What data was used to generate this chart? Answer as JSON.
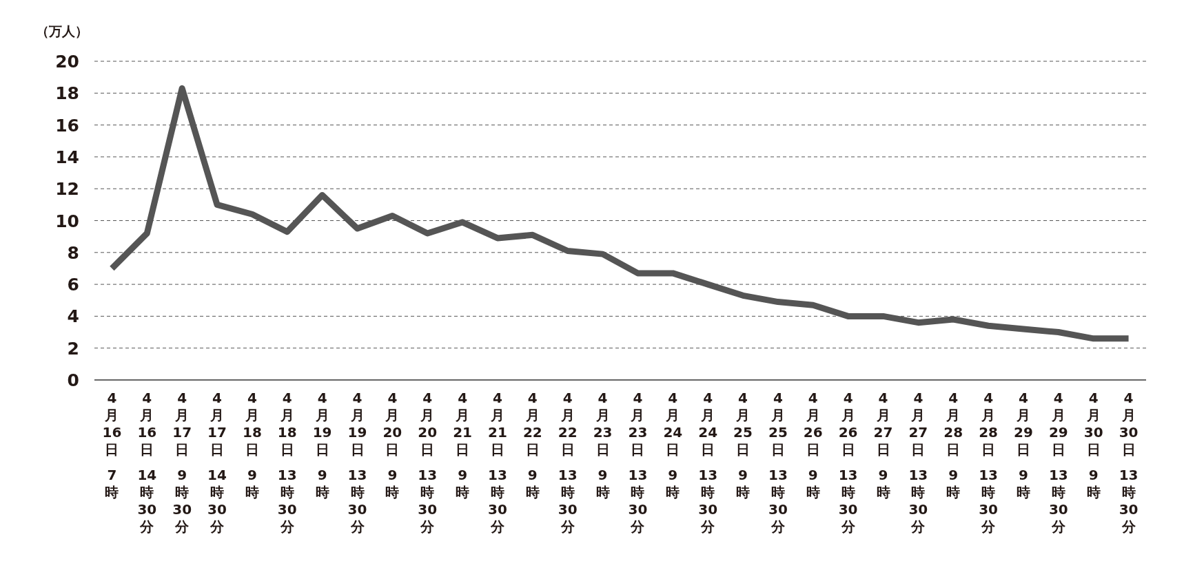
{
  "chart_data": {
    "type": "line",
    "ylabel": "（万人）",
    "categories": [
      "4月16日 7時",
      "4月16日 14時30分",
      "4月17日 9時30分",
      "4月17日 14時30分",
      "4月18日 9時",
      "4月18日 13時30分",
      "4月19日 9時",
      "4月19日 13時30分",
      "4月20日 9時",
      "4月20日 13時30分",
      "4月21日 9時",
      "4月21日 13時30分",
      "4月22日 9時",
      "4月22日 13時30分",
      "4月23日 9時",
      "4月23日 13時30分",
      "4月24日 9時",
      "4月24日 13時30分",
      "4月25日 9時",
      "4月25日 13時30分",
      "4月26日 9時",
      "4月26日 13時30分",
      "4月27日 9時",
      "4月27日 13時30分",
      "4月28日 9時",
      "4月28日 13時30分",
      "4月29日 9時",
      "4月29日 13時30分",
      "4月30日 9時",
      "4月30日 13時30分"
    ],
    "values": [
      7.0,
      9.2,
      18.3,
      11.0,
      10.4,
      9.3,
      11.6,
      9.5,
      10.3,
      9.2,
      9.9,
      8.9,
      9.1,
      8.1,
      7.9,
      6.7,
      6.7,
      6.0,
      5.3,
      4.9,
      4.7,
      4.0,
      4.0,
      3.6,
      3.8,
      3.4,
      3.2,
      3.0,
      2.6,
      2.6
    ],
    "color": "#555555",
    "ylim": [
      0,
      20
    ],
    "yticks": [
      0,
      2,
      4,
      6,
      8,
      10,
      12,
      14,
      16,
      18,
      20
    ],
    "grid": "y"
  }
}
